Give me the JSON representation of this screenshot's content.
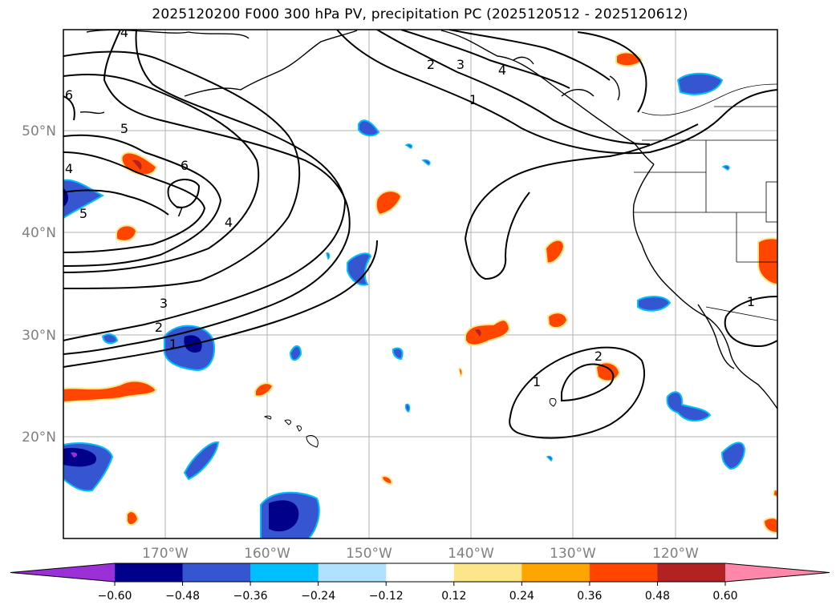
{
  "title": "2025120200 F000 300 hPa PV, precipitation PC (2025120512 - 2025120612)",
  "lat_labels": [
    "50°N",
    "40°N",
    "30°N",
    "20°N"
  ],
  "lon_labels": [
    "170°W",
    "160°W",
    "150°W",
    "140°W",
    "130°W",
    "120°W"
  ],
  "contour_labels": [
    "4",
    "6",
    "5",
    "4",
    "6",
    "7",
    "5",
    "4",
    "3",
    "2",
    "1",
    "2",
    "3",
    "4",
    "1",
    "1",
    "1",
    "2"
  ],
  "colorbar": {
    "ticks": [
      "−0.60",
      "−0.48",
      "−0.36",
      "−0.24",
      "−0.12",
      "0.12",
      "0.24",
      "0.36",
      "0.48",
      "0.60"
    ],
    "colors": [
      "#9b30d9",
      "#00008b",
      "#3556d0",
      "#00bfff",
      "#b0e2ff",
      "#ffffff",
      "#fde68a",
      "#ffa500",
      "#ff4500",
      "#b22222",
      "#ff88aa"
    ]
  },
  "colors": {
    "neg_dark": "#00008b",
    "neg_mid": "#3556d0",
    "neg_light": "#00bfff",
    "neg_pale": "#b0e2ff",
    "pos_pale": "#fde68a",
    "pos_mid": "#ffa500",
    "pos_strong": "#ff4500",
    "pos_dark": "#b22222",
    "neg_extreme": "#9b30d9"
  }
}
